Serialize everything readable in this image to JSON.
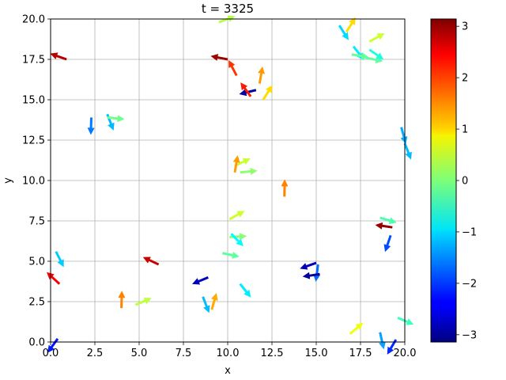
{
  "chart_data": {
    "type": "quiver",
    "title": "t = 3325",
    "xlabel": "x",
    "ylabel": "y",
    "xlim": [
      0.0,
      20.0
    ],
    "ylim": [
      0.0,
      20.0
    ],
    "grid": true,
    "x_ticks": [
      "0.0",
      "2.5",
      "5.0",
      "7.5",
      "10.0",
      "12.5",
      "15.0",
      "17.5",
      "20.0"
    ],
    "y_ticks": [
      "0.0",
      "2.5",
      "5.0",
      "7.5",
      "10.0",
      "12.5",
      "15.0",
      "17.5",
      "20.0"
    ],
    "colorbar": {
      "colormap": "jet",
      "range": [
        -3.14159,
        3.14159
      ],
      "ticks": [
        "3",
        "2",
        "1",
        "0",
        "−1",
        "−2",
        "−3"
      ],
      "tick_values": [
        3,
        2,
        1,
        0,
        -1,
        -2,
        -3
      ]
    },
    "arrows": [
      {
        "x": 0.9,
        "y": 17.5,
        "angle": 2.8
      },
      {
        "x": 2.3,
        "y": 13.9,
        "angle": -1.6
      },
      {
        "x": 3.2,
        "y": 14.1,
        "angle": -1.2
      },
      {
        "x": 3.2,
        "y": 13.9,
        "angle": -0.1
      },
      {
        "x": 0.3,
        "y": 5.6,
        "angle": -1.1
      },
      {
        "x": 0.5,
        "y": 3.6,
        "angle": 2.4
      },
      {
        "x": 0.4,
        "y": 0.2,
        "angle": -2.2
      },
      {
        "x": 4.0,
        "y": 2.1,
        "angle": 1.55
      },
      {
        "x": 4.8,
        "y": 2.3,
        "angle": 0.4
      },
      {
        "x": 6.1,
        "y": 4.8,
        "angle": 2.7
      },
      {
        "x": 8.6,
        "y": 2.8,
        "angle": -1.2
      },
      {
        "x": 8.9,
        "y": 4.0,
        "angle": -2.75
      },
      {
        "x": 9.1,
        "y": 2.0,
        "angle": 1.3
      },
      {
        "x": 9.5,
        "y": 19.8,
        "angle": 0.35
      },
      {
        "x": 10.0,
        "y": 17.5,
        "angle": 2.95
      },
      {
        "x": 10.5,
        "y": 16.5,
        "angle": 2.05
      },
      {
        "x": 10.4,
        "y": 10.9,
        "angle": 0.45
      },
      {
        "x": 10.4,
        "y": 10.5,
        "angle": 1.4
      },
      {
        "x": 10.7,
        "y": 10.5,
        "angle": 0.1
      },
      {
        "x": 10.1,
        "y": 7.6,
        "angle": 0.5
      },
      {
        "x": 10.1,
        "y": 6.5,
        "angle": 0.05
      },
      {
        "x": 10.2,
        "y": 6.7,
        "angle": -0.8
      },
      {
        "x": 9.7,
        "y": 5.5,
        "angle": -0.2
      },
      {
        "x": 10.7,
        "y": 3.6,
        "angle": -0.9
      },
      {
        "x": 11.6,
        "y": 15.6,
        "angle": -2.9
      },
      {
        "x": 11.8,
        "y": 16.0,
        "angle": 1.4
      },
      {
        "x": 11.3,
        "y": 15.2,
        "angle": 2.2
      },
      {
        "x": 12.0,
        "y": 15.0,
        "angle": 1.0
      },
      {
        "x": 13.2,
        "y": 9.0,
        "angle": 1.55
      },
      {
        "x": 15.0,
        "y": 4.9,
        "angle": -2.8
      },
      {
        "x": 15.1,
        "y": 4.8,
        "angle": -1.7
      },
      {
        "x": 15.2,
        "y": 4.2,
        "angle": -3.0
      },
      {
        "x": 16.3,
        "y": 19.6,
        "angle": -1.0
      },
      {
        "x": 16.7,
        "y": 19.2,
        "angle": 1.0
      },
      {
        "x": 17.1,
        "y": 18.3,
        "angle": -0.9
      },
      {
        "x": 17.0,
        "y": 17.8,
        "angle": -0.15
      },
      {
        "x": 17.8,
        "y": 17.6,
        "angle": -0.2
      },
      {
        "x": 18.0,
        "y": 18.6,
        "angle": 0.5
      },
      {
        "x": 18.0,
        "y": 18.1,
        "angle": -0.6
      },
      {
        "x": 18.6,
        "y": 7.7,
        "angle": -0.3
      },
      {
        "x": 19.3,
        "y": 7.1,
        "angle": 3.0
      },
      {
        "x": 19.2,
        "y": 6.6,
        "angle": -1.9
      },
      {
        "x": 16.9,
        "y": 0.5,
        "angle": 0.7
      },
      {
        "x": 18.6,
        "y": 0.6,
        "angle": -1.35
      },
      {
        "x": 19.5,
        "y": 0.15,
        "angle": -2.1
      },
      {
        "x": 19.6,
        "y": 1.5,
        "angle": -0.4
      },
      {
        "x": 19.8,
        "y": 13.3,
        "angle": -1.3
      },
      {
        "x": 20.0,
        "y": 12.3,
        "angle": -1.2
      }
    ]
  }
}
